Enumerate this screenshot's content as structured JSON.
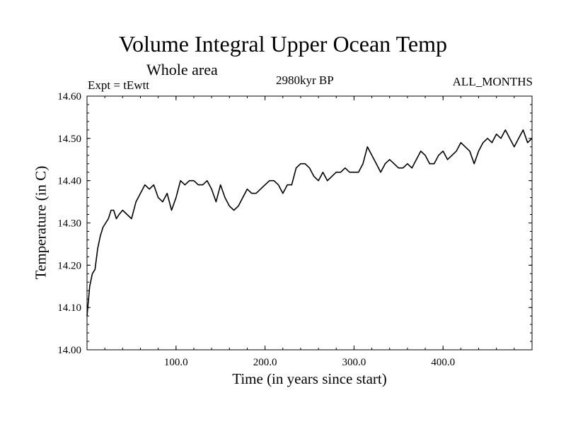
{
  "chart_data": {
    "type": "line",
    "title": "Volume Integral Upper Ocean Temp",
    "subtitle": "Whole area",
    "experiment_label": "Expt = tEwtt",
    "period_label": "2980kyr BP",
    "months_label": "ALL_MONTHS",
    "xlabel": "Time (in years since start)",
    "ylabel": "Temperature (in C)",
    "xlim": [
      0,
      500
    ],
    "ylim": [
      14.0,
      14.6
    ],
    "x_ticks": [
      100,
      200,
      300,
      400
    ],
    "x_tick_labels": [
      "100.0",
      "200.0",
      "300.0",
      "400.0"
    ],
    "y_ticks": [
      14.0,
      14.1,
      14.2,
      14.3,
      14.4,
      14.5,
      14.6
    ],
    "y_tick_labels": [
      "14.00",
      "14.10",
      "14.20",
      "14.30",
      "14.40",
      "14.50",
      "14.60"
    ],
    "series": [
      {
        "name": "Upper ocean temperature",
        "x": [
          0,
          3,
          6,
          9,
          12,
          15,
          18,
          21,
          24,
          27,
          30,
          33,
          36,
          40,
          45,
          50,
          55,
          60,
          65,
          70,
          75,
          80,
          85,
          90,
          95,
          100,
          105,
          110,
          115,
          120,
          125,
          130,
          135,
          140,
          145,
          150,
          155,
          160,
          165,
          170,
          175,
          180,
          185,
          190,
          195,
          200,
          205,
          210,
          215,
          220,
          225,
          230,
          235,
          240,
          245,
          250,
          255,
          260,
          265,
          270,
          275,
          280,
          285,
          290,
          295,
          300,
          305,
          310,
          315,
          320,
          325,
          330,
          335,
          340,
          345,
          350,
          355,
          360,
          365,
          370,
          375,
          380,
          385,
          390,
          395,
          400,
          405,
          410,
          415,
          420,
          425,
          430,
          435,
          440,
          445,
          450,
          455,
          460,
          465,
          470,
          475,
          480,
          485,
          490,
          495,
          500
        ],
        "values": [
          14.08,
          14.15,
          14.18,
          14.19,
          14.24,
          14.27,
          14.29,
          14.3,
          14.31,
          14.33,
          14.33,
          14.31,
          14.32,
          14.33,
          14.32,
          14.31,
          14.35,
          14.37,
          14.39,
          14.38,
          14.39,
          14.36,
          14.35,
          14.37,
          14.33,
          14.36,
          14.4,
          14.39,
          14.4,
          14.4,
          14.39,
          14.39,
          14.4,
          14.38,
          14.35,
          14.39,
          14.36,
          14.34,
          14.33,
          14.34,
          14.36,
          14.38,
          14.37,
          14.37,
          14.38,
          14.39,
          14.4,
          14.4,
          14.39,
          14.37,
          14.39,
          14.39,
          14.43,
          14.44,
          14.44,
          14.43,
          14.41,
          14.4,
          14.42,
          14.4,
          14.41,
          14.42,
          14.42,
          14.43,
          14.42,
          14.42,
          14.42,
          14.44,
          14.48,
          14.46,
          14.44,
          14.42,
          14.44,
          14.45,
          14.44,
          14.43,
          14.43,
          14.44,
          14.43,
          14.45,
          14.47,
          14.46,
          14.44,
          14.44,
          14.46,
          14.47,
          14.45,
          14.46,
          14.47,
          14.49,
          14.48,
          14.47,
          14.44,
          14.47,
          14.49,
          14.5,
          14.49,
          14.51,
          14.5,
          14.52,
          14.5,
          14.48,
          14.5,
          14.52,
          14.49,
          14.5
        ]
      }
    ]
  }
}
